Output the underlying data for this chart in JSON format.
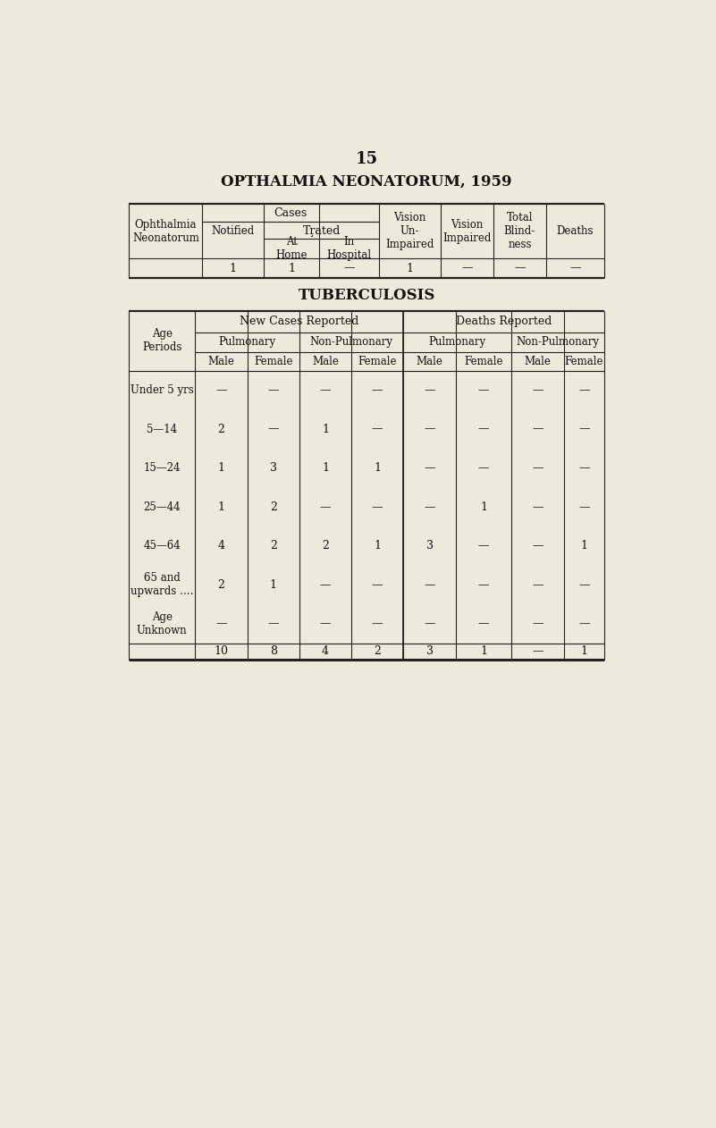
{
  "page_number": "15",
  "title1": "OPTHALMIA NEONATORUM, 1959",
  "title2": "TUBERCULOSIS",
  "bg_color": "#edeadc",
  "table1": {
    "data_row": [
      "1",
      "1",
      "—",
      "1",
      "—",
      "—",
      "—"
    ]
  },
  "table2": {
    "age_periods": [
      "Under 5 yrs",
      "5—14",
      "15—24",
      "25—44",
      "45—64",
      "65 and\nupwards ….",
      "Age\nUnknown"
    ],
    "data": [
      [
        "—",
        "—",
        "—",
        "—",
        "—",
        "—",
        "—",
        "—"
      ],
      [
        "2",
        "—",
        "1",
        "—",
        "—",
        "—",
        "—",
        "—"
      ],
      [
        "1",
        "3",
        "1",
        "1",
        "—",
        "—",
        "—",
        "—"
      ],
      [
        "1",
        "2",
        "—",
        "—",
        "—",
        "1",
        "—",
        "—"
      ],
      [
        "4",
        "2",
        "2",
        "1",
        "3",
        "—",
        "—",
        "1"
      ],
      [
        "2",
        "1",
        "—",
        "—",
        "—",
        "—",
        "—",
        "—"
      ],
      [
        "—",
        "—",
        "—",
        "—",
        "—",
        "—",
        "—",
        "—"
      ]
    ],
    "totals": [
      "10",
      "8",
      "4",
      "2",
      "3",
      "1",
      "—",
      "1"
    ]
  }
}
